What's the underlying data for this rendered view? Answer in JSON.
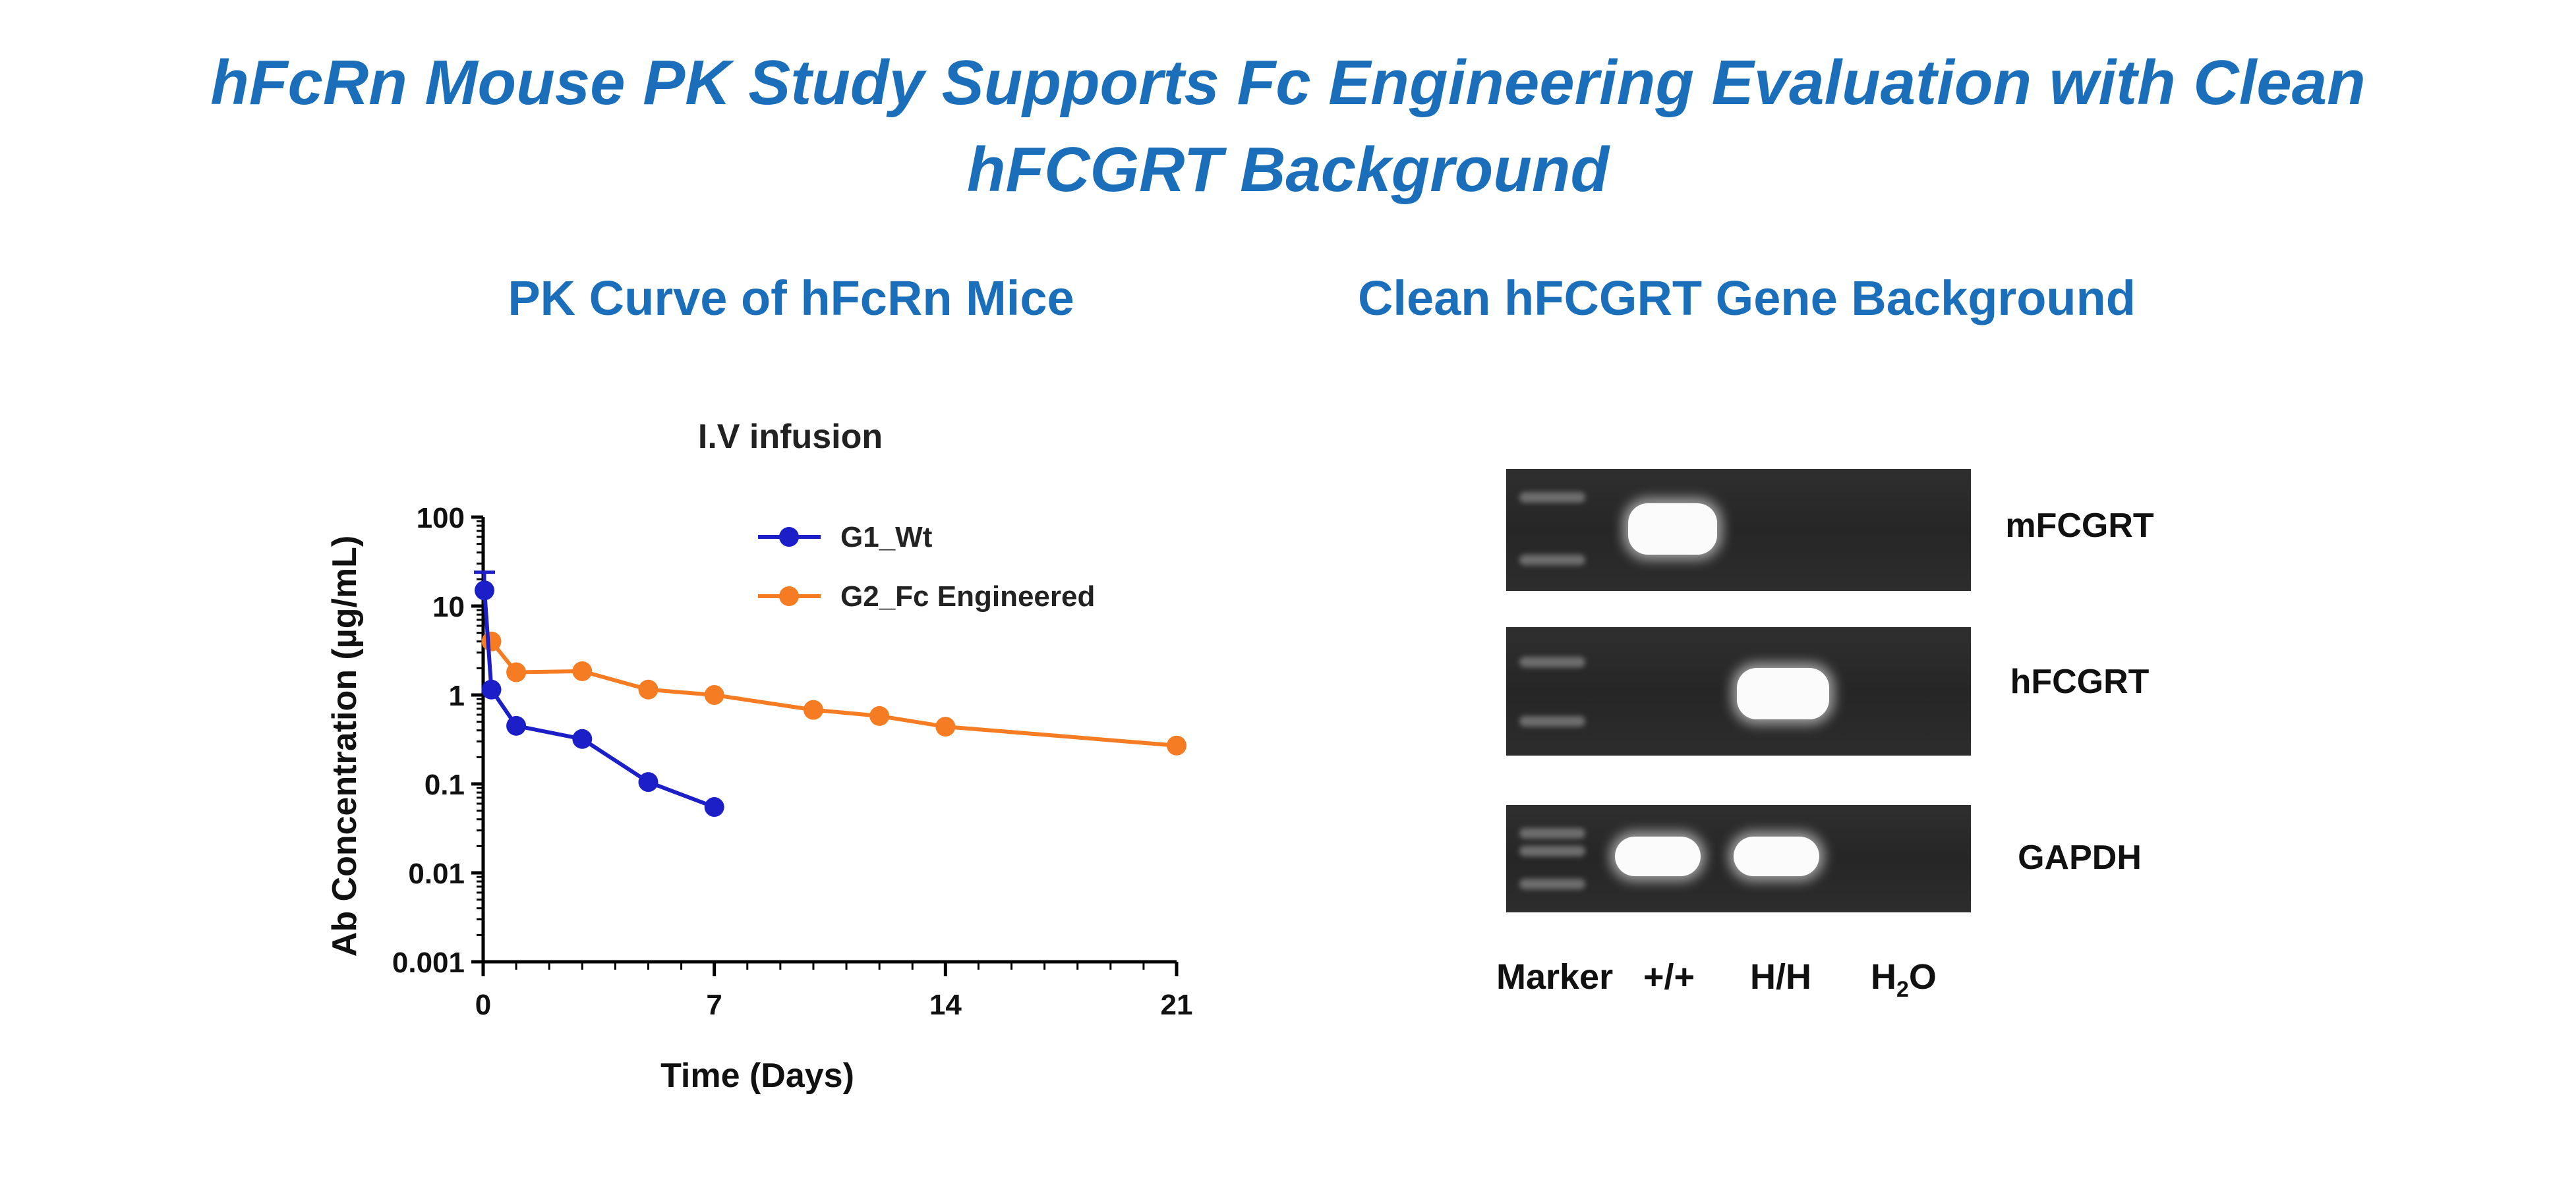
{
  "title": "hFcRn Mouse PK Study Supports Fc Engineering Evaluation with Clean hFCGRT Background",
  "title_line1": "hFcRn Mouse PK Study Supports Fc Engineering Evaluation with Clean",
  "title_line2": "hFCGRT Background",
  "left_panel_title": "PK Curve of hFcRn Mice",
  "right_panel_title": "Clean hFCGRT Gene Background",
  "colors": {
    "title": "#1b6fba",
    "series_wt": "#1c1fc7",
    "series_fc": "#f57c22"
  },
  "chart_data": {
    "type": "line",
    "title": "I.V infusion",
    "xlabel": "Time (Days)",
    "ylabel": "Ab Concentration (µg/mL)",
    "xlim": [
      0,
      21
    ],
    "ylim": [
      0.001,
      100
    ],
    "yscale": "log",
    "xticks": [
      0,
      7,
      14,
      21
    ],
    "xtick_labels": [
      "0",
      "7",
      "14",
      "21"
    ],
    "yticks": [
      0.001,
      0.01,
      0.1,
      1,
      10,
      100
    ],
    "ytick_labels": [
      "0.001",
      "0.01",
      "0.1",
      "1",
      "10",
      "100"
    ],
    "legend": "top-right",
    "series": [
      {
        "name": "G1_Wt",
        "color": "#1c1fc7",
        "x": [
          0.04,
          0.25,
          1,
          3,
          5,
          7
        ],
        "y": [
          15,
          1.15,
          0.45,
          0.32,
          0.105,
          0.055
        ],
        "error_upper": [
          24,
          null,
          null,
          null,
          null,
          null
        ]
      },
      {
        "name": "G2_Fc Engineered",
        "color": "#f57c22",
        "x": [
          0.25,
          1,
          3,
          5,
          7,
          10,
          12,
          14,
          21
        ],
        "y": [
          4,
          1.8,
          1.85,
          1.15,
          1.0,
          0.68,
          0.58,
          0.44,
          0.27
        ],
        "error_upper": [
          null,
          null,
          null,
          null,
          null,
          null,
          null,
          null,
          null
        ]
      }
    ]
  },
  "gel": {
    "rows": [
      {
        "label": "mFCGRT",
        "bands": [
          "+/+"
        ]
      },
      {
        "label": "hFCGRT",
        "bands": [
          "H/H"
        ]
      },
      {
        "label": "GAPDH",
        "bands": [
          "+/+",
          "H/H"
        ]
      }
    ],
    "lanes": {
      "marker": "Marker",
      "wt": "+/+",
      "hh": "H/H",
      "h2o_base": "H",
      "h2o_sub": "2",
      "h2o_tail": "O"
    }
  }
}
